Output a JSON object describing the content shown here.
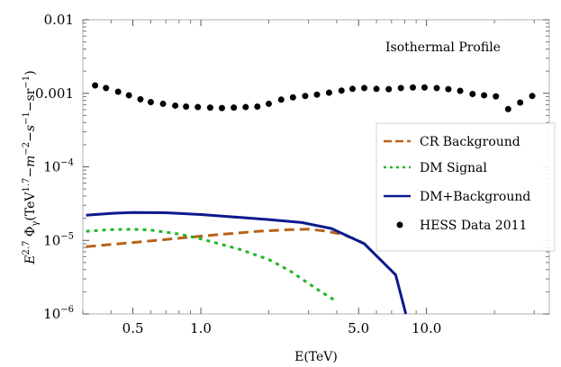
{
  "chart_data": {
    "type": "line",
    "title": "",
    "xlabel": "E(TeV)",
    "ylabel": "E^{2.7} Φ_γ(TeV^{1.7}−m^{−2}−s^{−1}−sr^{−1})",
    "ylabel_parts": {
      "E": "E",
      "exp": "2.7",
      "phi": "Φ",
      "phi_sub": "γ",
      "u1": "(TeV",
      "u1e": "1.7",
      "u2": "−m",
      "u2e": "−2",
      "u3": "−s",
      "u3e": "−1",
      "u4": "−sr",
      "u4e": "−1",
      "close": ")"
    },
    "x_scale": "log",
    "y_scale": "log",
    "xlim": [
      0.3,
      35
    ],
    "ylim": [
      1e-06,
      0.01
    ],
    "x_ticks": [
      {
        "value": 0.5,
        "label": "0.5"
      },
      {
        "value": 1.0,
        "label": "1.0"
      },
      {
        "value": 5.0,
        "label": "5.0"
      },
      {
        "value": 10.0,
        "label": "10.0"
      }
    ],
    "y_ticks": [
      {
        "value": 0.01,
        "label": "0.01"
      },
      {
        "value": 0.001,
        "label": "0.001"
      },
      {
        "value": 0.0001,
        "label": "10",
        "exp": "−4"
      },
      {
        "value": 1e-05,
        "label": "10",
        "exp": "−5"
      },
      {
        "value": 1e-06,
        "label": "10",
        "exp": "−6"
      }
    ],
    "grid": false,
    "legend_position": "right",
    "annotation": "Isothermal Profile",
    "series": [
      {
        "name": "CR Background",
        "kind": "line",
        "style": "dashed",
        "color": "#b8621b",
        "points": [
          [
            0.31,
            8.2e-06
          ],
          [
            0.4,
            8.8e-06
          ],
          [
            0.55,
            9.6e-06
          ],
          [
            0.8,
            1.07e-05
          ],
          [
            1.2,
            1.2e-05
          ],
          [
            1.8,
            1.33e-05
          ],
          [
            2.5,
            1.4e-05
          ],
          [
            3.0,
            1.42e-05
          ],
          [
            3.5,
            1.35e-05
          ],
          [
            4.2,
            1.22e-05
          ],
          [
            5.0,
            1e-05
          ],
          [
            5.3,
            9e-06
          ]
        ]
      },
      {
        "name": "DM Signal",
        "kind": "line",
        "style": "dotted",
        "color": "#22b622",
        "points": [
          [
            0.31,
            1.33e-05
          ],
          [
            0.4,
            1.4e-05
          ],
          [
            0.5,
            1.42e-05
          ],
          [
            0.6,
            1.38e-05
          ],
          [
            0.8,
            1.22e-05
          ],
          [
            1.0,
            1.05e-05
          ],
          [
            1.5,
            7.5e-06
          ],
          [
            2.0,
            5.5e-06
          ],
          [
            2.5,
            3.8e-06
          ],
          [
            3.0,
            2.6e-06
          ],
          [
            3.5,
            1.9e-06
          ],
          [
            3.9,
            1.55e-06
          ]
        ]
      },
      {
        "name": "DM+Background",
        "kind": "line",
        "style": "solid",
        "color": "#0d1a8c",
        "points": [
          [
            0.31,
            2.2e-05
          ],
          [
            0.4,
            2.33e-05
          ],
          [
            0.5,
            2.4e-05
          ],
          [
            0.7,
            2.38e-05
          ],
          [
            1.0,
            2.25e-05
          ],
          [
            1.5,
            2.05e-05
          ],
          [
            2.0,
            1.92e-05
          ],
          [
            2.8,
            1.75e-05
          ],
          [
            3.8,
            1.45e-05
          ],
          [
            5.3,
            9e-06
          ],
          [
            7.3,
            3.4e-06
          ],
          [
            8.1,
            1e-06
          ]
        ]
      },
      {
        "name": "HESS Data 2011",
        "kind": "scatter",
        "style": "points",
        "color": "#000000",
        "points": [
          [
            0.34,
            0.00128
          ],
          [
            0.38,
            0.00118
          ],
          [
            0.43,
            0.00105
          ],
          [
            0.48,
            0.00094
          ],
          [
            0.54,
            0.00083
          ],
          [
            0.6,
            0.00076
          ],
          [
            0.68,
            0.00072
          ],
          [
            0.77,
            0.00068
          ],
          [
            0.86,
            0.00066
          ],
          [
            0.97,
            0.00065
          ],
          [
            1.1,
            0.00064
          ],
          [
            1.24,
            0.00063
          ],
          [
            1.4,
            0.00064
          ],
          [
            1.58,
            0.00065
          ],
          [
            1.78,
            0.00066
          ],
          [
            2.0,
            0.00072
          ],
          [
            2.27,
            0.00082
          ],
          [
            2.56,
            0.00088
          ],
          [
            2.9,
            0.00092
          ],
          [
            3.27,
            0.00096
          ],
          [
            3.7,
            0.00102
          ],
          [
            4.2,
            0.00109
          ],
          [
            4.7,
            0.00115
          ],
          [
            5.3,
            0.00118
          ],
          [
            6.0,
            0.00115
          ],
          [
            6.8,
            0.00114
          ],
          [
            7.7,
            0.00118
          ],
          [
            8.7,
            0.0012
          ],
          [
            9.8,
            0.0012
          ],
          [
            11.1,
            0.00118
          ],
          [
            12.5,
            0.00114
          ],
          [
            14.1,
            0.00108
          ],
          [
            16.0,
            0.00098
          ],
          [
            18.0,
            0.00094
          ],
          [
            20.3,
            0.00091
          ],
          [
            23.0,
            0.00061
          ],
          [
            26.0,
            0.00075
          ],
          [
            29.4,
            0.00092
          ]
        ]
      }
    ]
  }
}
